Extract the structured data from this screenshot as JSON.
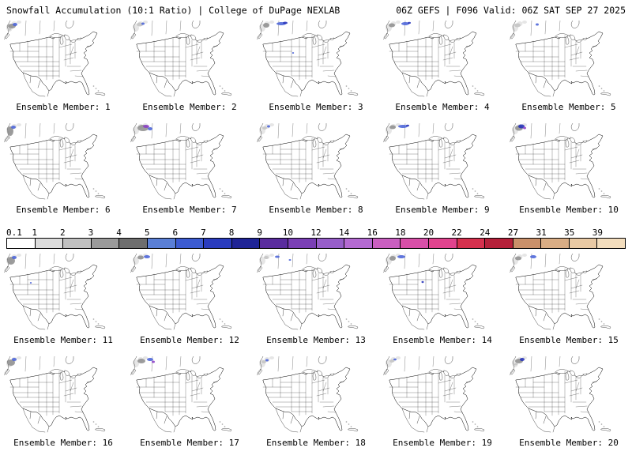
{
  "header": {
    "left": "Snowfall Accumulation (10:1 Ratio) | College of DuPage NEXLAB",
    "right": "06Z GEFS | F096 Valid: 06Z SAT SEP 27 2025"
  },
  "colorbar": {
    "values": [
      "0.1",
      "1",
      "2",
      "3",
      "4",
      "5",
      "6",
      "7",
      "8",
      "9",
      "10",
      "12",
      "14",
      "16",
      "18",
      "20",
      "22",
      "24",
      "27",
      "31",
      "35",
      "39"
    ],
    "colors": [
      "#ffffff",
      "#dcdcdc",
      "#c0c0c0",
      "#9a9a9a",
      "#6e6e6e",
      "#5a7fd6",
      "#3c5bd1",
      "#2a3cbe",
      "#1f2496",
      "#5a2d9e",
      "#7a3fb5",
      "#975ec9",
      "#b46ad2",
      "#c95fc0",
      "#d84fa8",
      "#e1438e",
      "#d6304e",
      "#b5203a",
      "#c9906a",
      "#d9ad85",
      "#e8c9a4",
      "#f3ddbd"
    ]
  },
  "members": [
    {
      "label": "Ensemble Member: 1",
      "snow": [
        [
          10,
          7,
          5,
          3,
          "#8f8f8f"
        ],
        [
          14,
          5,
          3,
          2,
          "#4a63d8"
        ],
        [
          7,
          11,
          2,
          1.5,
          "#c4c4c4"
        ]
      ]
    },
    {
      "label": "Ensemble Member: 2",
      "snow": [
        [
          12,
          5,
          4,
          2.5,
          "#c4c4c4"
        ],
        [
          16,
          4,
          2,
          1.5,
          "#4a63d8"
        ]
      ]
    },
    {
      "label": "Ensemble Member: 3",
      "snow": [
        [
          12,
          6,
          4,
          3,
          "#8f8f8f"
        ],
        [
          31,
          4,
          6,
          2,
          "#4a63d8"
        ],
        [
          36,
          3,
          3,
          1.5,
          "#2330b8"
        ],
        [
          46,
          41,
          1.2,
          1,
          "#4a63d8"
        ]
      ]
    },
    {
      "label": "Ensemble Member: 4",
      "snow": [
        [
          11,
          6,
          4,
          2.5,
          "#8f8f8f"
        ],
        [
          28,
          4,
          5,
          2,
          "#4a63d8"
        ],
        [
          33,
          3,
          2,
          1.2,
          "#2330b8"
        ]
      ]
    },
    {
      "label": "Ensemble Member: 5",
      "snow": [
        [
          10,
          6,
          4,
          2.5,
          "#c4c4c4"
        ],
        [
          35,
          5,
          2,
          1.5,
          "#4a63d8"
        ]
      ]
    },
    {
      "label": "Ensemble Member: 6",
      "snow": [
        [
          8,
          10,
          4,
          6,
          "#8f8f8f"
        ],
        [
          12,
          5,
          3,
          2,
          "#4a63d8"
        ],
        [
          6,
          18,
          2,
          2,
          "#c4c4c4"
        ]
      ]
    },
    {
      "label": "Ensemble Member: 7",
      "snow": [
        [
          16,
          6,
          7,
          4,
          "#8f8f8f"
        ],
        [
          20,
          4,
          4,
          2,
          "#8b3fc6"
        ],
        [
          25,
          7,
          3,
          2,
          "#4a63d8"
        ]
      ]
    },
    {
      "label": "Ensemble Member: 8",
      "snow": [
        [
          10,
          6,
          3,
          2,
          "#c4c4c4"
        ],
        [
          15,
          4,
          2,
          1.5,
          "#4a63d8"
        ]
      ]
    },
    {
      "label": "Ensemble Member: 9",
      "snow": [
        [
          12,
          5,
          4,
          2.5,
          "#8f8f8f"
        ],
        [
          25,
          4,
          6,
          2,
          "#4a63d8"
        ],
        [
          31,
          3,
          2,
          1.2,
          "#2330b8"
        ]
      ]
    },
    {
      "label": "Ensemble Member: 10",
      "snow": [
        [
          12,
          6,
          5,
          3.5,
          "#8f8f8f"
        ],
        [
          15,
          4,
          4,
          2.5,
          "#2330b8"
        ],
        [
          19,
          6,
          2,
          1.5,
          "#8b3fc6"
        ]
      ]
    },
    {
      "label": "Ensemble Member: 11",
      "snow": [
        [
          9,
          9,
          5,
          5,
          "#8f8f8f"
        ],
        [
          13,
          5,
          3,
          2,
          "#4a63d8"
        ],
        [
          34,
          37,
          1.2,
          1,
          "#4a63d8"
        ]
      ]
    },
    {
      "label": "Ensemble Member: 12",
      "snow": [
        [
          13,
          5,
          4,
          2.5,
          "#8f8f8f"
        ],
        [
          21,
          4,
          4,
          2,
          "#4a63d8"
        ]
      ]
    },
    {
      "label": "Ensemble Member: 13",
      "snow": [
        [
          12,
          5,
          3,
          2,
          "#c4c4c4"
        ],
        [
          26,
          4,
          3,
          1.5,
          "#4a63d8"
        ],
        [
          42,
          8,
          1.5,
          1,
          "#4a63d8"
        ]
      ]
    },
    {
      "label": "Ensemble Member: 14",
      "snow": [
        [
          12,
          6,
          4,
          3,
          "#8f8f8f"
        ],
        [
          23,
          4,
          5,
          2,
          "#4a63d8"
        ],
        [
          50,
          36,
          1.5,
          1.2,
          "#2330b8"
        ]
      ]
    },
    {
      "label": "Ensemble Member: 15",
      "snow": [
        [
          11,
          6,
          4,
          2.5,
          "#8f8f8f"
        ],
        [
          30,
          4,
          4,
          2,
          "#4a63d8"
        ]
      ]
    },
    {
      "label": "Ensemble Member: 16",
      "snow": [
        [
          9,
          8,
          5,
          4,
          "#8f8f8f"
        ],
        [
          13,
          4,
          3,
          2,
          "#4a63d8"
        ]
      ]
    },
    {
      "label": "Ensemble Member: 17",
      "snow": [
        [
          14,
          6,
          5,
          3,
          "#8f8f8f"
        ],
        [
          25,
          4,
          4,
          2,
          "#4a63d8"
        ],
        [
          29,
          7,
          2,
          1.5,
          "#8b3fc6"
        ]
      ]
    },
    {
      "label": "Ensemble Member: 18",
      "snow": [
        [
          9,
          7,
          3,
          2,
          "#c4c4c4"
        ],
        [
          13,
          5,
          2,
          1.5,
          "#4a63d8"
        ]
      ]
    },
    {
      "label": "Ensemble Member: 19",
      "snow": [
        [
          11,
          6,
          3,
          2,
          "#c4c4c4"
        ],
        [
          15,
          4,
          2,
          1.2,
          "#4a63d8"
        ]
      ]
    },
    {
      "label": "Ensemble Member: 20",
      "snow": [
        [
          12,
          6,
          5,
          3,
          "#8f8f8f"
        ],
        [
          16,
          4,
          3,
          2,
          "#2330b8"
        ],
        [
          8,
          10,
          2,
          1.5,
          "#c4c4c4"
        ]
      ]
    }
  ]
}
